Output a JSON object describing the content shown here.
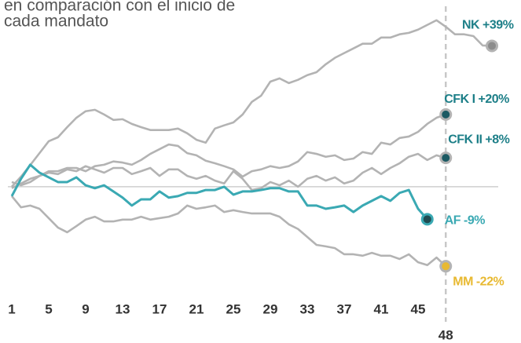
{
  "chart_data": {
    "type": "line",
    "subtitle": [
      "en comparación con el inicio de",
      "cada mandato"
    ],
    "x": [
      1,
      2,
      3,
      4,
      5,
      6,
      7,
      8,
      9,
      10,
      11,
      12,
      13,
      14,
      15,
      16,
      17,
      18,
      19,
      20,
      21,
      22,
      23,
      24,
      25,
      26,
      27,
      28,
      29,
      30,
      31,
      32,
      33,
      34,
      35,
      36,
      37,
      38,
      39,
      40,
      41,
      42,
      43,
      44,
      45,
      46,
      47,
      48,
      49,
      50,
      51,
      52,
      53
    ],
    "xlim": [
      1,
      53
    ],
    "xticks": [
      1,
      5,
      9,
      13,
      17,
      21,
      25,
      29,
      33,
      37,
      41,
      45,
      48
    ],
    "ylim": [
      -28.7,
      51.7
    ],
    "baseline": 0,
    "series": [
      {
        "name": "NK",
        "label": "NK +39%",
        "color": "#b3b3b3",
        "dot_color": "#8c8c8c",
        "label_color": "#1d7f88",
        "values": [
          0,
          2.8,
          6,
          9.3,
          12.6,
          13.7,
          16.5,
          19.1,
          20.9,
          21.3,
          20,
          18.5,
          18.7,
          17.4,
          16.5,
          15.7,
          15.7,
          15.7,
          16.1,
          14.8,
          13,
          12.2,
          16.1,
          17,
          17.8,
          20,
          23.5,
          25.2,
          29.1,
          30,
          28.7,
          29.6,
          30.9,
          31.7,
          33.9,
          35.7,
          37,
          38.3,
          39.6,
          39.6,
          41.3,
          41.3,
          42.2,
          42.6,
          43.5,
          44.8,
          46.1,
          44.3,
          42.2,
          42.2,
          41.7,
          39.1,
          39
        ]
      },
      {
        "name": "CFK I",
        "label": "CFK I +20%",
        "color": "#b3b3b3",
        "dot_color": "#1c5a63",
        "label_color": "#1d7f88",
        "values": [
          -0.4,
          0.9,
          2.2,
          3,
          4.3,
          4.3,
          5.2,
          5.2,
          4.3,
          5.7,
          6.1,
          7,
          6.7,
          6.1,
          7.4,
          9.1,
          10.4,
          11.7,
          11.3,
          9.3,
          8.7,
          7.2,
          6.5,
          5.7,
          4.8,
          2.8,
          4.3,
          4.8,
          5.7,
          5.2,
          5.7,
          7,
          9.6,
          9.1,
          8.3,
          8.7,
          7.4,
          7.8,
          9.6,
          9.1,
          12.2,
          11.7,
          13.5,
          13.9,
          15.2,
          17.4,
          19.1,
          20,
          null,
          null,
          null,
          null,
          null
        ]
      },
      {
        "name": "CFK II",
        "label": "CFK II +8%",
        "color": "#b3b3b3",
        "dot_color": "#1c5a63",
        "label_color": "#1d7f88",
        "values": [
          1.3,
          0.4,
          1.3,
          3,
          3.9,
          3.5,
          4.8,
          4.3,
          5.7,
          4.8,
          3.9,
          5.2,
          5.2,
          3.5,
          4.3,
          5.2,
          3,
          4.8,
          4.8,
          3,
          2.2,
          3,
          1.7,
          0.9,
          4.3,
          2.2,
          -0.9,
          -0.4,
          1.3,
          0.4,
          1.7,
          0,
          2.2,
          3,
          1.7,
          2.6,
          0.9,
          1.7,
          3.9,
          5.2,
          3.5,
          5.2,
          6.5,
          8.3,
          9.1,
          7.4,
          8.7,
          8,
          null,
          null,
          null,
          null,
          null
        ]
      },
      {
        "name": "MM",
        "label": "MM -22%",
        "color": "#b3b3b3",
        "dot_color": "#e8b931",
        "label_color": "#e8b931",
        "values": [
          -2.6,
          -5.7,
          -5.2,
          -6.1,
          -8.7,
          -11.3,
          -12.6,
          -10.9,
          -9.1,
          -8.3,
          -9.6,
          -9.6,
          -9.1,
          -9.1,
          -8.3,
          -9.1,
          -8.7,
          -8.3,
          -7.4,
          -5.2,
          -6.1,
          -5.7,
          -5.2,
          -7,
          -6.5,
          -7,
          -7.4,
          -7.4,
          -7.4,
          -8.3,
          -10.4,
          -11.7,
          -13.9,
          -16.1,
          -16.5,
          -17,
          -18.7,
          -18.7,
          -19.1,
          -18.3,
          -19.1,
          -19.1,
          -20,
          -18.7,
          -20.9,
          -21.7,
          -19.6,
          -22,
          null,
          null,
          null,
          null,
          null
        ]
      },
      {
        "name": "AF",
        "label": "AF -9%",
        "color": "#3aa9b3",
        "dot_color": "#1f4c52",
        "label_color": "#3aa9b3",
        "values": [
          -2.6,
          2.2,
          6.1,
          3.9,
          2.6,
          1.3,
          1.3,
          2.6,
          0.4,
          -0.4,
          0.4,
          -1.3,
          -3,
          -5.2,
          -3.5,
          -3.5,
          -1.3,
          -3,
          -2.6,
          -1.7,
          -1.7,
          -0.9,
          -0.9,
          0,
          -2.2,
          -1.3,
          -1.3,
          -0.9,
          -0.4,
          -0.4,
          -1.3,
          -1.3,
          -5.2,
          -5.2,
          -6.1,
          -5.7,
          -5.2,
          -7,
          -5.2,
          -3.9,
          -2.6,
          -3.9,
          -1.7,
          -0.9,
          -6.1,
          -9,
          null,
          null,
          null,
          null,
          null,
          null,
          null
        ]
      }
    ]
  }
}
